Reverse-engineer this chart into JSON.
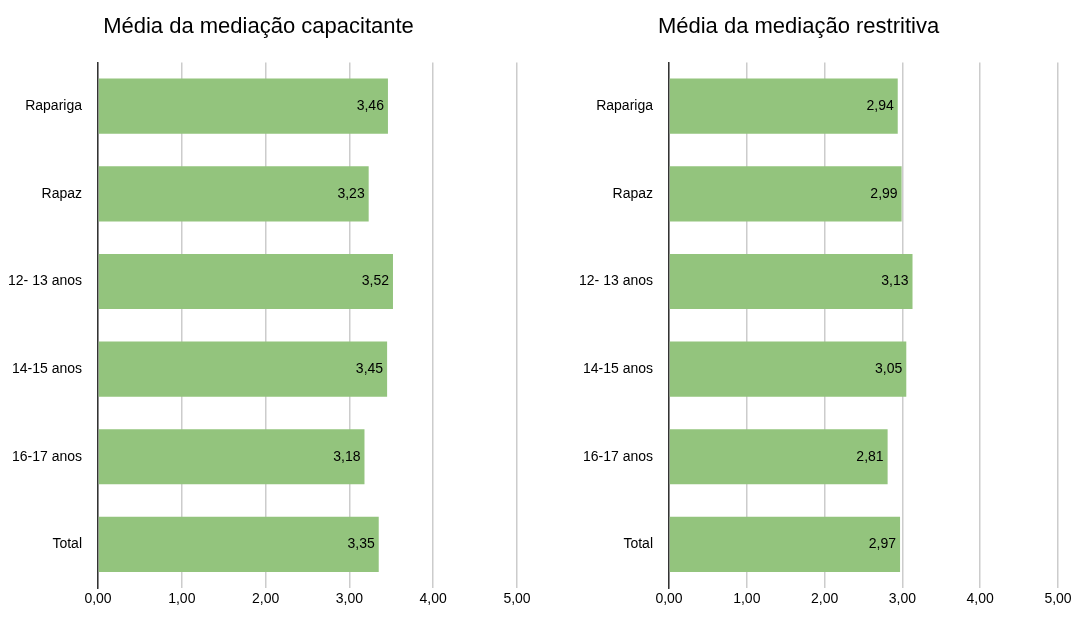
{
  "chart_data": [
    {
      "type": "bar",
      "orientation": "horizontal",
      "title": "Média da mediação capacitante",
      "categories": [
        "Rapariga",
        "Rapaz",
        "12- 13 anos",
        "14-15 anos",
        "16-17 anos",
        "Total"
      ],
      "values": [
        3.46,
        3.23,
        3.52,
        3.45,
        3.18,
        3.35
      ],
      "value_labels": [
        "3,46",
        "3,23",
        "3,52",
        "3,45",
        "3,18",
        "3,35"
      ],
      "color": "#93c47d",
      "xlim": [
        0,
        5
      ],
      "xticks": [
        {
          "value": 0,
          "label": "0,00"
        },
        {
          "value": 1,
          "label": "1,00"
        },
        {
          "value": 2,
          "label": "2,00"
        },
        {
          "value": 3,
          "label": "3,00"
        },
        {
          "value": 4,
          "label": "4,00"
        },
        {
          "value": 5,
          "label": "5,00"
        }
      ],
      "grid": "x"
    },
    {
      "type": "bar",
      "orientation": "horizontal",
      "title": "Média da mediação restritiva",
      "categories": [
        "Rapariga",
        "Rapaz",
        "12- 13 anos",
        "14-15 anos",
        "16-17 anos",
        "Total"
      ],
      "values": [
        2.94,
        2.99,
        3.13,
        3.05,
        2.81,
        2.97
      ],
      "value_labels": [
        "2,94",
        "2,99",
        "3,13",
        "3,05",
        "2,81",
        "2,97"
      ],
      "color": "#93c47d",
      "xlim": [
        0,
        5
      ],
      "xticks": [
        {
          "value": 0,
          "label": "0,00"
        },
        {
          "value": 1,
          "label": "1,00"
        },
        {
          "value": 2,
          "label": "2,00"
        },
        {
          "value": 3,
          "label": "3,00"
        },
        {
          "value": 4,
          "label": "4,00"
        },
        {
          "value": 5,
          "label": "5,00"
        }
      ],
      "grid": "x"
    }
  ]
}
